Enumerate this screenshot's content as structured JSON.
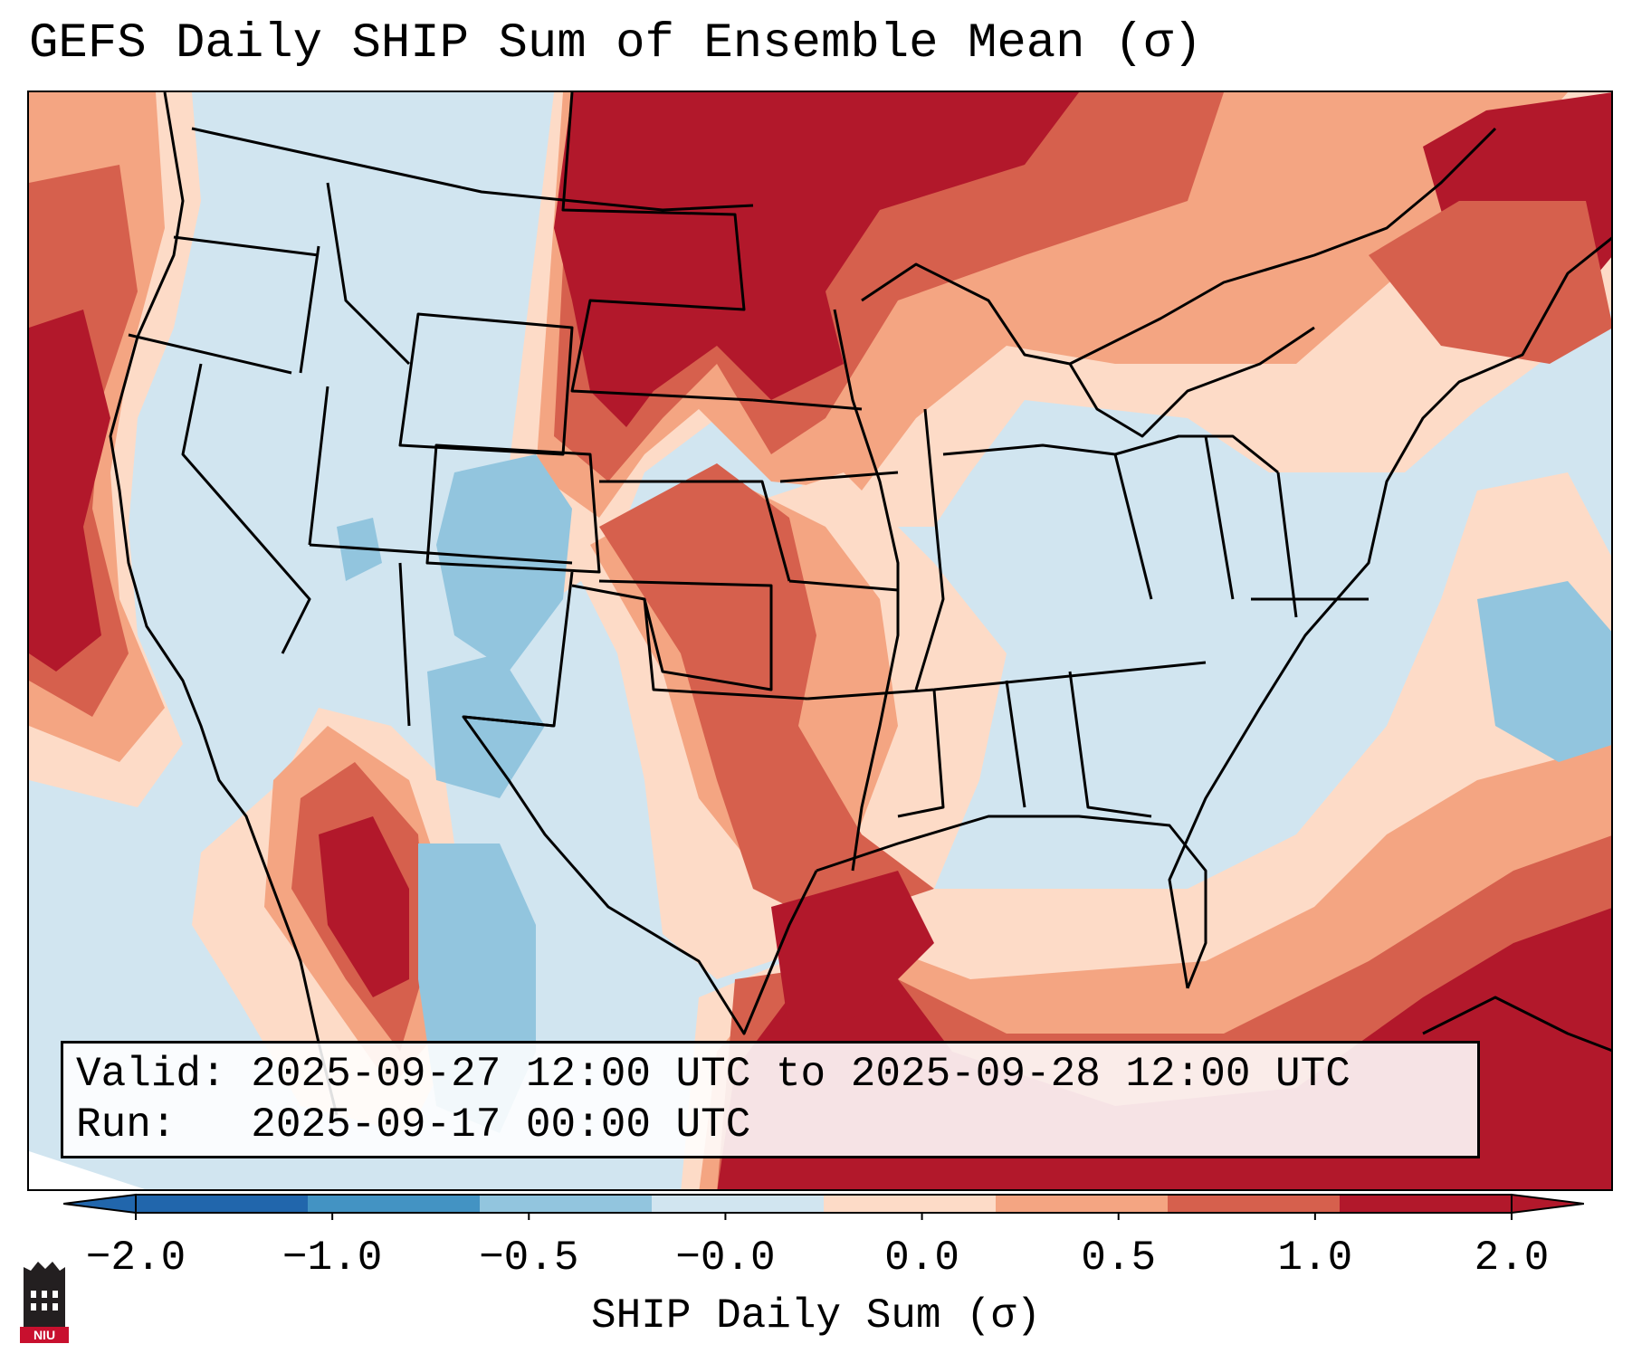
{
  "title": "GEFS Daily SHIP Sum of Ensemble Mean (σ)",
  "info": {
    "valid_label": "Valid:",
    "valid_value": "2025-09-27 12:00 UTC to 2025-09-28 12:00 UTC",
    "run_label": "Run:",
    "run_value": "2025-09-17 00:00 UTC"
  },
  "colorbar": {
    "label": "SHIP Daily Sum (σ)",
    "ticks": [
      "−2.0",
      "−1.0",
      "−0.5",
      "−0.0",
      "0.0",
      "0.5",
      "1.0",
      "2.0"
    ],
    "colors": [
      "#2166ac",
      "#4393c3",
      "#92c5de",
      "#d1e5f0",
      "#fddbc7",
      "#f4a582",
      "#d6604d",
      "#b2182b"
    ],
    "extend": "both"
  },
  "map_regions": {
    "ocean_background": "#d1e5f0",
    "strong_positive": "#b2182b",
    "positive": "#d6604d",
    "weak_positive": "#f4a582",
    "near_zero_positive": "#fddbc7",
    "weak_negative": "#92c5de"
  },
  "logo": {
    "text": "NIU",
    "color": "#c8102e"
  }
}
